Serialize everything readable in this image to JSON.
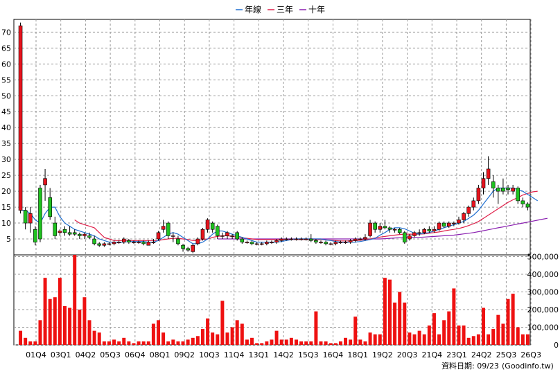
{
  "chart_data": {
    "type": "candlestick+bar",
    "legend": [
      {
        "label": "年線",
        "color": "#1f6fd0"
      },
      {
        "label": "三年",
        "color": "#e0204a"
      },
      {
        "label": "十年",
        "color": "#8a1fb0"
      }
    ],
    "price_panel": {
      "ylim": [
        0,
        74
      ],
      "yticks": [
        "5",
        "10",
        "15",
        "20",
        "25",
        "30",
        "35",
        "40",
        "45",
        "50",
        "55",
        "60",
        "65",
        "70"
      ],
      "grid": true
    },
    "volume_panel": {
      "ylim": [
        0,
        510000
      ],
      "yticks": [
        "0",
        "100,000",
        "200,000",
        "300,000",
        "400,000",
        "500,000"
      ],
      "grid": true
    },
    "x_labels": [
      "01Q4",
      "03Q1",
      "04Q2",
      "05Q3",
      "06Q4",
      "08Q1",
      "09Q2",
      "10Q3",
      "11Q4",
      "13Q1",
      "14Q2",
      "15Q3",
      "16Q4",
      "18Q1",
      "19Q2",
      "20Q3",
      "21Q4",
      "23Q1",
      "24Q2",
      "25Q3",
      "26Q3"
    ],
    "candles": [
      {
        "o": 14,
        "c": 72,
        "h": 73,
        "l": 13
      },
      {
        "o": 14,
        "c": 10,
        "h": 15,
        "l": 8
      },
      {
        "o": 10,
        "c": 13,
        "h": 15,
        "l": 7
      },
      {
        "o": 8,
        "c": 4,
        "h": 9,
        "l": 3
      },
      {
        "o": 21,
        "c": 5,
        "h": 22,
        "l": 4
      },
      {
        "o": 22,
        "c": 24,
        "h": 27,
        "l": 17
      },
      {
        "o": 18,
        "c": 12,
        "h": 21,
        "l": 11
      },
      {
        "o": 10,
        "c": 6,
        "h": 12,
        "l": 5
      },
      {
        "o": 7,
        "c": 7.5,
        "h": 8,
        "l": 6
      },
      {
        "o": 8,
        "c": 7,
        "h": 9,
        "l": 6
      },
      {
        "o": 7,
        "c": 6.5,
        "h": 9,
        "l": 6
      },
      {
        "o": 7,
        "c": 6.5,
        "h": 8,
        "l": 6
      },
      {
        "o": 6.5,
        "c": 6,
        "h": 7,
        "l": 5
      },
      {
        "o": 6,
        "c": 6.5,
        "h": 7,
        "l": 5
      },
      {
        "o": 6,
        "c": 5.5,
        "h": 7,
        "l": 5
      },
      {
        "o": 5,
        "c": 3.5,
        "h": 6,
        "l": 3
      },
      {
        "o": 3.5,
        "c": 3,
        "h": 4,
        "l": 2.5
      },
      {
        "o": 3,
        "c": 3.5,
        "h": 4,
        "l": 2.5
      },
      {
        "o": 3.5,
        "c": 3.5,
        "h": 4,
        "l": 3
      },
      {
        "o": 3.5,
        "c": 4,
        "h": 4.5,
        "l": 3
      },
      {
        "o": 4,
        "c": 4,
        "h": 4.5,
        "l": 3.5
      },
      {
        "o": 4,
        "c": 5,
        "h": 5.5,
        "l": 3.5
      },
      {
        "o": 4.5,
        "c": 4,
        "h": 5,
        "l": 3.5
      },
      {
        "o": 4,
        "c": 4,
        "h": 4.5,
        "l": 3.5
      },
      {
        "o": 4,
        "c": 4,
        "h": 4.5,
        "l": 3.5
      },
      {
        "o": 4,
        "c": 3.5,
        "h": 4.5,
        "l": 3
      },
      {
        "o": 3,
        "c": 4,
        "h": 4.5,
        "l": 3
      },
      {
        "o": 4,
        "c": 4,
        "h": 5,
        "l": 3.5
      },
      {
        "o": 5,
        "c": 7,
        "h": 7.5,
        "l": 4.5
      },
      {
        "o": 8,
        "c": 9,
        "h": 11,
        "l": 7
      },
      {
        "o": 10,
        "c": 6,
        "h": 10.5,
        "l": 5
      },
      {
        "o": 6,
        "c": 6,
        "h": 7,
        "l": 4
      },
      {
        "o": 5,
        "c": 3.5,
        "h": 6,
        "l": 3
      },
      {
        "o": 3,
        "c": 2,
        "h": 3.5,
        "l": 1
      },
      {
        "o": 2,
        "c": 1.5,
        "h": 2.5,
        "l": 1
      },
      {
        "o": 1,
        "c": 3,
        "h": 3.5,
        "l": 0.5
      },
      {
        "o": 3.5,
        "c": 5,
        "h": 5.5,
        "l": 3
      },
      {
        "o": 5,
        "c": 8,
        "h": 8.5,
        "l": 4.5
      },
      {
        "o": 8,
        "c": 11,
        "h": 11.5,
        "l": 7
      },
      {
        "o": 10,
        "c": 8,
        "h": 10.5,
        "l": 7
      },
      {
        "o": 9,
        "c": 6,
        "h": 9.5,
        "l": 5
      },
      {
        "o": 6,
        "c": 6,
        "h": 7,
        "l": 5
      },
      {
        "o": 6,
        "c": 7,
        "h": 7.5,
        "l": 5
      },
      {
        "o": 6,
        "c": 6,
        "h": 6.5,
        "l": 5
      },
      {
        "o": 7,
        "c": 5,
        "h": 7.5,
        "l": 4.5
      },
      {
        "o": 5,
        "c": 4,
        "h": 5.5,
        "l": 3.5
      },
      {
        "o": 4,
        "c": 4,
        "h": 4.5,
        "l": 3.5
      },
      {
        "o": 4,
        "c": 3.5,
        "h": 4.5,
        "l": 3
      },
      {
        "o": 3.5,
        "c": 3.5,
        "h": 4,
        "l": 3
      },
      {
        "o": 3.5,
        "c": 3.5,
        "h": 4,
        "l": 3
      },
      {
        "o": 3.5,
        "c": 4,
        "h": 4.5,
        "l": 3
      },
      {
        "o": 4,
        "c": 4,
        "h": 4.5,
        "l": 3.5
      },
      {
        "o": 4,
        "c": 4.5,
        "h": 5,
        "l": 3.5
      },
      {
        "o": 4.5,
        "c": 5,
        "h": 5.5,
        "l": 4
      },
      {
        "o": 5,
        "c": 5,
        "h": 5.5,
        "l": 4.5
      },
      {
        "o": 5,
        "c": 5,
        "h": 5.5,
        "l": 4.5
      },
      {
        "o": 5,
        "c": 5,
        "h": 5.5,
        "l": 4.5
      },
      {
        "o": 5,
        "c": 5,
        "h": 5.5,
        "l": 4.5
      },
      {
        "o": 5,
        "c": 5,
        "h": 5.5,
        "l": 4.5
      },
      {
        "o": 5,
        "c": 4.5,
        "h": 6.5,
        "l": 4
      },
      {
        "o": 4.5,
        "c": 4,
        "h": 5,
        "l": 3.5
      },
      {
        "o": 4,
        "c": 4,
        "h": 4.5,
        "l": 3.5
      },
      {
        "o": 4,
        "c": 3.5,
        "h": 4.5,
        "l": 3
      },
      {
        "o": 3.5,
        "c": 3.5,
        "h": 4,
        "l": 3
      },
      {
        "o": 3.5,
        "c": 4,
        "h": 4.5,
        "l": 3
      },
      {
        "o": 4,
        "c": 4,
        "h": 4.5,
        "l": 3.5
      },
      {
        "o": 4,
        "c": 4,
        "h": 4.5,
        "l": 3.5
      },
      {
        "o": 4,
        "c": 4.5,
        "h": 5,
        "l": 3.5
      },
      {
        "o": 4.5,
        "c": 5,
        "h": 5.5,
        "l": 4
      },
      {
        "o": 5,
        "c": 5,
        "h": 5.5,
        "l": 4.5
      },
      {
        "o": 5,
        "c": 5.5,
        "h": 6.5,
        "l": 4.5
      },
      {
        "o": 6,
        "c": 10,
        "h": 11,
        "l": 5.5
      },
      {
        "o": 10,
        "c": 8,
        "h": 10.5,
        "l": 7
      },
      {
        "o": 8,
        "c": 9,
        "h": 10,
        "l": 7
      },
      {
        "o": 9,
        "c": 8.5,
        "h": 11,
        "l": 8
      },
      {
        "o": 8.5,
        "c": 8,
        "h": 9,
        "l": 7
      },
      {
        "o": 8,
        "c": 8,
        "h": 8.5,
        "l": 7
      },
      {
        "o": 8,
        "c": 7,
        "h": 8.5,
        "l": 6.5
      },
      {
        "o": 7,
        "c": 4,
        "h": 7.5,
        "l": 3.5
      },
      {
        "o": 5,
        "c": 6,
        "h": 6.5,
        "l": 4.5
      },
      {
        "o": 6,
        "c": 7,
        "h": 7.5,
        "l": 5.5
      },
      {
        "o": 7,
        "c": 7,
        "h": 8,
        "l": 6
      },
      {
        "o": 7,
        "c": 8,
        "h": 8.5,
        "l": 6.5
      },
      {
        "o": 8,
        "c": 7.5,
        "h": 9,
        "l": 7
      },
      {
        "o": 7.5,
        "c": 8,
        "h": 9,
        "l": 7
      },
      {
        "o": 8,
        "c": 10,
        "h": 10.5,
        "l": 7.5
      },
      {
        "o": 10,
        "c": 9,
        "h": 10.5,
        "l": 8.5
      },
      {
        "o": 9,
        "c": 10,
        "h": 10.5,
        "l": 8.5
      },
      {
        "o": 10,
        "c": 10,
        "h": 10.5,
        "l": 9
      },
      {
        "o": 10,
        "c": 11,
        "h": 12,
        "l": 9.5
      },
      {
        "o": 11,
        "c": 13,
        "h": 13.5,
        "l": 10
      },
      {
        "o": 13,
        "c": 15,
        "h": 15.5,
        "l": 12
      },
      {
        "o": 15,
        "c": 17,
        "h": 18,
        "l": 14
      },
      {
        "o": 17,
        "c": 21,
        "h": 22,
        "l": 16
      },
      {
        "o": 21,
        "c": 24,
        "h": 26,
        "l": 19
      },
      {
        "o": 24,
        "c": 27,
        "h": 31,
        "l": 22
      },
      {
        "o": 23,
        "c": 21,
        "h": 25,
        "l": 18
      },
      {
        "o": 21,
        "c": 20,
        "h": 22,
        "l": 16
      },
      {
        "o": 21,
        "c": 20,
        "h": 24,
        "l": 19
      },
      {
        "o": 21,
        "c": 20.5,
        "h": 22,
        "l": 19
      },
      {
        "o": 20,
        "c": 21,
        "h": 22,
        "l": 19
      },
      {
        "o": 21,
        "c": 17,
        "h": 21.5,
        "l": 16
      },
      {
        "o": 17,
        "c": 16,
        "h": 18,
        "l": 15
      },
      {
        "o": 16,
        "c": 15,
        "h": 16.5,
        "l": 14
      }
    ],
    "volumes": [
      80000,
      40000,
      20000,
      20000,
      140000,
      380000,
      260000,
      270000,
      380000,
      220000,
      210000,
      510000,
      200000,
      270000,
      140000,
      80000,
      70000,
      20000,
      20000,
      30000,
      20000,
      40000,
      20000,
      10000,
      20000,
      20000,
      20000,
      120000,
      140000,
      70000,
      20000,
      30000,
      20000,
      20000,
      30000,
      40000,
      50000,
      90000,
      150000,
      70000,
      60000,
      250000,
      70000,
      100000,
      140000,
      120000,
      30000,
      40000,
      10000,
      10000,
      20000,
      30000,
      80000,
      30000,
      30000,
      40000,
      30000,
      20000,
      20000,
      20000,
      190000,
      20000,
      20000,
      10000,
      10000,
      20000,
      40000,
      30000,
      160000,
      30000,
      20000,
      70000,
      60000,
      60000,
      380000,
      370000,
      240000,
      300000,
      240000,
      70000,
      60000,
      80000,
      60000,
      110000,
      180000,
      60000,
      140000,
      190000,
      320000,
      110000,
      110000,
      40000,
      50000,
      60000,
      210000,
      60000,
      90000,
      170000,
      120000,
      260000,
      290000,
      100000,
      60000,
      60000,
      40000,
      120000,
      130000,
      90000,
      120000,
      130000,
      80000,
      100000,
      60000,
      120000
    ],
    "ma_year": [
      14,
      14,
      13,
      11,
      10,
      13,
      15,
      15,
      12,
      10,
      9,
      8,
      7.5,
      7,
      6.5,
      6,
      5,
      4.5,
      4,
      4,
      4,
      4,
      4.2,
      4.2,
      4.2,
      4.2,
      4,
      4,
      4.5,
      5.5,
      6.5,
      7,
      6.5,
      5.5,
      4.5,
      3.5,
      3.5,
      4,
      5,
      6.5,
      7.5,
      7.5,
      7,
      6.5,
      6,
      5.5,
      5,
      4.5,
      4,
      4,
      4,
      4,
      4,
      4.2,
      4.5,
      4.8,
      5,
      5,
      5,
      5,
      5,
      5,
      4.7,
      4.5,
      4.2,
      4,
      4,
      4,
      4,
      4.2,
      4.5,
      4.8,
      5.2,
      6.2,
      7,
      8,
      8.5,
      8.5,
      8.2,
      7.5,
      6.8,
      6.5,
      6.8,
      7,
      7.5,
      8,
      8.5,
      9,
      9.5,
      10,
      10.5,
      11.5,
      12.5,
      14,
      16,
      18,
      20,
      21,
      21,
      21,
      21,
      20.5,
      20,
      19,
      18,
      17
    ],
    "ma_3y": [
      null,
      null,
      null,
      null,
      null,
      null,
      null,
      null,
      null,
      null,
      null,
      11,
      10,
      9.5,
      9,
      8.5,
      7,
      5.5,
      5,
      4.5,
      4.5,
      4.5,
      4.5,
      4.5,
      4.5,
      4.5,
      4.5,
      4.5,
      4.5,
      4.8,
      5,
      5.2,
      5.2,
      5,
      4.8,
      4.5,
      4.5,
      4.8,
      5,
      5.5,
      5.8,
      6,
      6,
      5.8,
      5.6,
      5.4,
      5.2,
      5,
      4.8,
      4.8,
      4.8,
      4.8,
      4.8,
      4.8,
      4.8,
      4.8,
      4.8,
      4.8,
      4.8,
      4.8,
      4.8,
      4.8,
      4.7,
      4.6,
      4.5,
      4.4,
      4.4,
      4.4,
      4.5,
      4.6,
      4.8,
      5,
      5.3,
      5.6,
      5.8,
      6,
      6.2,
      6.4,
      6.5,
      6.5,
      6.5,
      6.5,
      6.6,
      6.8,
      7,
      7.2,
      7.5,
      7.8,
      8,
      8.3,
      8.7,
      9.2,
      9.8,
      10.5,
      11.5,
      12.5,
      13.5,
      14.5,
      15.5,
      16.5,
      17.3,
      18,
      18.8,
      19.3,
      19.8,
      20
    ],
    "ma_10y": [
      null,
      null,
      null,
      null,
      null,
      null,
      null,
      null,
      null,
      null,
      null,
      null,
      null,
      null,
      null,
      null,
      null,
      null,
      null,
      null,
      null,
      null,
      null,
      null,
      null,
      null,
      null,
      null,
      null,
      null,
      null,
      null,
      null,
      null,
      null,
      null,
      null,
      null,
      null,
      null,
      5,
      5,
      5,
      5,
      5,
      5,
      5,
      5,
      5,
      5,
      5,
      5,
      5,
      5,
      5,
      5,
      5,
      5,
      5,
      5,
      5,
      5,
      5,
      5,
      5,
      5,
      5,
      5,
      5,
      5,
      5,
      5,
      5,
      5,
      5.1,
      5.2,
      5.3,
      5.4,
      5.5,
      5.5,
      5.5,
      5.5,
      5.6,
      5.7,
      5.8,
      5.9,
      6,
      6.1,
      6.2,
      6.4,
      6.6,
      6.8,
      7,
      7.3,
      7.6,
      7.9,
      8.2,
      8.5,
      8.8,
      9.1,
      9.4,
      9.7,
      10,
      10.3,
      10.6,
      10.9,
      11.2,
      11.5
    ]
  },
  "footer": {
    "date_text": "資料日期: 09/23",
    "source_text": "(Goodinfo.tw)"
  }
}
